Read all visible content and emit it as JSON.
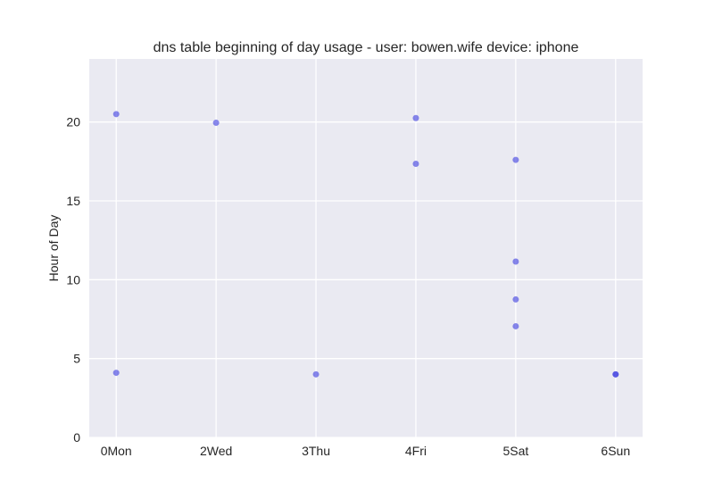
{
  "chart_data": {
    "type": "scatter",
    "title": "dns table beginning of day usage -  user: bowen.wife device: iphone",
    "xlabel": "",
    "ylabel": "Hour of Day",
    "x_categories": [
      "0Mon",
      "2Wed",
      "3Thu",
      "4Fri",
      "5Sat",
      "6Sun"
    ],
    "x_range": [
      -0.27,
      5.27
    ],
    "y_ticks": [
      "0",
      "5",
      "10",
      "15",
      "20"
    ],
    "ylim": [
      0,
      24
    ],
    "grid": true,
    "point_color": "#3a3ae0",
    "background_color": "#eaeaf2",
    "grid_color": "#ffffff",
    "points": [
      {
        "x": 0,
        "y": 20.5
      },
      {
        "x": 0,
        "y": 4.1
      },
      {
        "x": 1,
        "y": 19.95
      },
      {
        "x": 2,
        "y": 4.0
      },
      {
        "x": 3,
        "y": 20.25
      },
      {
        "x": 3,
        "y": 17.35
      },
      {
        "x": 4,
        "y": 17.6
      },
      {
        "x": 4,
        "y": 11.15
      },
      {
        "x": 4,
        "y": 8.75
      },
      {
        "x": 4,
        "y": 7.05
      },
      {
        "x": 5,
        "y": 4.0
      },
      {
        "x": 5,
        "y": 4.0
      }
    ]
  }
}
